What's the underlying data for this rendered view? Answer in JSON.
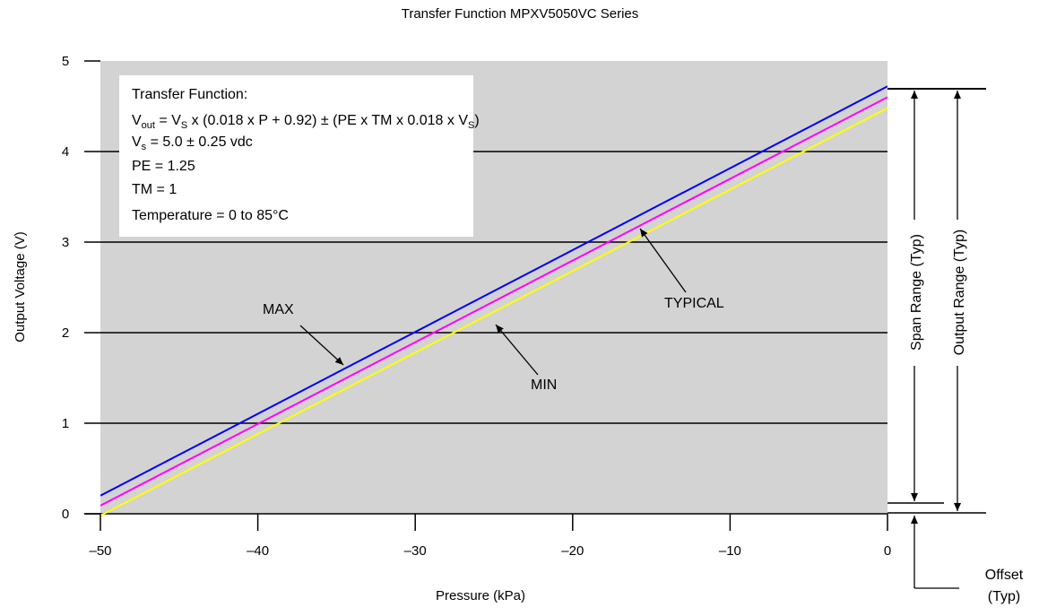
{
  "chart_data": {
    "type": "line",
    "title": "Transfer Function MPXV5050VC Series",
    "xlabel": "Pressure (kPa)",
    "ylabel": "Output Voltage (V)",
    "xlim": [
      -50,
      0
    ],
    "ylim": [
      0,
      5
    ],
    "grid": "horizontal",
    "x_ticks": [
      "–50",
      "–40",
      "–30",
      "–20",
      "–10",
      "0"
    ],
    "y_ticks": [
      "0",
      "1",
      "2",
      "3",
      "4",
      "5"
    ],
    "series": [
      {
        "name": "MAX",
        "color": "#0000ff",
        "points": [
          [
            -50,
            0.2
          ],
          [
            0,
            4.72
          ]
        ]
      },
      {
        "name": "TYPICAL",
        "color": "#ff00ff",
        "points": [
          [
            -50,
            0.09
          ],
          [
            0,
            4.6
          ]
        ]
      },
      {
        "name": "MIN",
        "color": "#ffff00",
        "points": [
          [
            -50,
            -0.02
          ],
          [
            0,
            4.48
          ]
        ]
      }
    ],
    "annotations": {
      "max_label": "MAX",
      "min_label": "MIN",
      "typical_label": "TYPICAL",
      "span_range": "Span Range (Typ)",
      "output_range": "Output Range (Typ)",
      "offset_line1": "Offset",
      "offset_line2": "(Typ)"
    },
    "formula_box": {
      "line1": "Transfer Function:",
      "line2_vout": "V",
      "line2_vout_sub": "out",
      "line2_eq": " = V",
      "line2_vs_sub": "S",
      "line2_rest": " x (0.018 x P + 0.92) ± (PE x TM x 0.018 x V",
      "line2_vs2_sub": "S",
      "line2_close": ")",
      "line3_v": "V",
      "line3_sub": "s",
      "line3_rest": " = 5.0 ± 0.25 vdc",
      "line4": "PE = 1.25",
      "line5": "TM = 1",
      "line6": "Temperature = 0 to 85°C"
    },
    "colors": {
      "plot_background": "#d3d3d3",
      "max": "#0000ff",
      "typical": "#ff00ff",
      "min": "#ffff00"
    }
  }
}
